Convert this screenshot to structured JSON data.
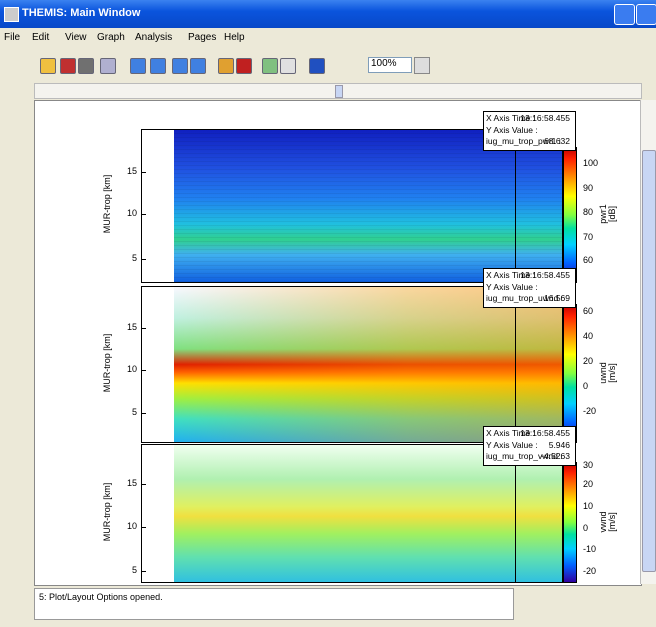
{
  "window": {
    "title": "THEMIS: Main Window"
  },
  "menu": [
    "File",
    "Edit",
    "View",
    "Graph",
    "Analysis",
    "Pages",
    "Help"
  ],
  "toolbar": {
    "zoom": "100%"
  },
  "panels": [
    {
      "y_label": "MUR-trop [km]",
      "y_ticks": [
        "15",
        "10",
        "5"
      ],
      "colorbar_label": [
        "pwr1",
        "[dB]"
      ],
      "colorbar_ticks": [
        "100",
        "90",
        "80",
        "70",
        "60"
      ],
      "info": {
        "x_label": "X Axis Time :",
        "x_value": "13:16:58.455",
        "y_label": "Y Axis Value :",
        "var_label": "iug_mu_trop_pwr1 :",
        "var_value": "68.632"
      }
    },
    {
      "y_label": "MUR-trop [km]",
      "y_ticks": [
        "15",
        "10",
        "5"
      ],
      "colorbar_label": [
        "uwnd",
        "[m/s]"
      ],
      "colorbar_ticks": [
        "60",
        "40",
        "20",
        "0",
        "-20"
      ],
      "info": {
        "x_label": "X Axis Time :",
        "x_value": "13:16:58.455",
        "y_label": "Y Axis Value :",
        "var_label": "iug_mu_trop_uwnd :",
        "var_value": "16.569"
      }
    },
    {
      "y_label": "MUR-trop [km]",
      "y_ticks": [
        "15",
        "10",
        "5"
      ],
      "colorbar_label": [
        "vwnd",
        "[m/s]"
      ],
      "colorbar_ticks": [
        "30",
        "20",
        "10",
        "0",
        "-10",
        "-20"
      ],
      "info": {
        "x_label": "X Axis Time :",
        "x_value": "13:16:58.455",
        "y_label": "Y Axis Value :",
        "y_value": "5.946",
        "var_label": "iug_mu_trop_vwnd :",
        "var_value": "-4.5263"
      }
    }
  ],
  "status": "5: Plot/Layout Options opened."
}
